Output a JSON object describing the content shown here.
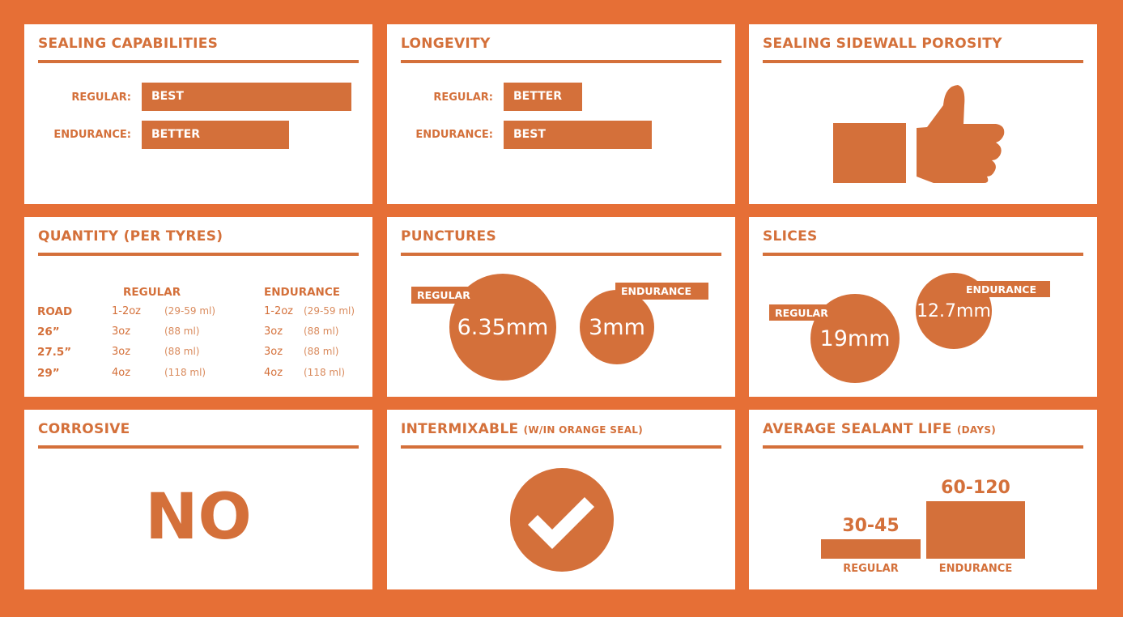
{
  "sealing_capabilities": {
    "title": "SEALING CAPABILITIES",
    "rows": [
      {
        "label": "REGULAR:",
        "value": "BEST"
      },
      {
        "label": "ENDURANCE:",
        "value": "BETTER"
      }
    ]
  },
  "longevity": {
    "title": "LONGEVITY",
    "rows": [
      {
        "label": "REGULAR:",
        "value": "BETTER"
      },
      {
        "label": "ENDURANCE:",
        "value": "BEST"
      }
    ]
  },
  "sidewall": {
    "title": "SEALING SIDEWALL POROSITY",
    "icon": "thumbs-up-icon"
  },
  "quantity": {
    "title": "QUANTITY (PER TYRES)",
    "headers": [
      "REGULAR",
      "ENDURANCE"
    ],
    "rows": [
      {
        "size": "ROAD",
        "reg": "1-2oz",
        "reg_ml": "(29-59 ml)",
        "end": "1-2oz",
        "end_ml": "(29-59 ml)"
      },
      {
        "size": "26”",
        "reg": "3oz",
        "reg_ml": "(88 ml)",
        "end": "3oz",
        "end_ml": "(88 ml)"
      },
      {
        "size": "27.5”",
        "reg": "3oz",
        "reg_ml": "(88 ml)",
        "end": "3oz",
        "end_ml": "(88 ml)"
      },
      {
        "size": "29”",
        "reg": "4oz",
        "reg_ml": "(118 ml)",
        "end": "4oz",
        "end_ml": "(118 ml)"
      }
    ]
  },
  "punctures": {
    "title": "PUNCTURES",
    "regular_label": "REGULAR",
    "regular": "6.35mm",
    "endurance_label": "ENDURANCE",
    "endurance": "3mm"
  },
  "slices": {
    "title": "SLICES",
    "regular_label": "REGULAR",
    "regular": "19mm",
    "endurance_label": "ENDURANCE",
    "endurance": "12.7mm"
  },
  "corrosive": {
    "title": "CORROSIVE",
    "value": "NO"
  },
  "intermixable": {
    "title": "INTERMIXABLE",
    "title_small": "(W/IN ORANGE SEAL)",
    "icon": "checkmark-circle-icon"
  },
  "sealant_life": {
    "title": "AVERAGE SEALANT LIFE",
    "title_small": "(DAYS)",
    "regular_label": "REGULAR",
    "regular": "30-45",
    "endurance_label": "ENDURANCE",
    "endurance": "60-120"
  },
  "colors": {
    "background": "#E66F36",
    "accent": "#D4703A",
    "panel": "#FFFFFF"
  }
}
